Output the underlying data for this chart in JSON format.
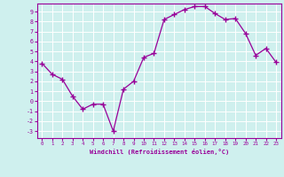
{
  "x": [
    0,
    1,
    2,
    3,
    4,
    5,
    6,
    7,
    8,
    9,
    10,
    11,
    12,
    13,
    14,
    15,
    16,
    17,
    18,
    19,
    20,
    21,
    22,
    23
  ],
  "y": [
    3.8,
    2.7,
    2.2,
    0.5,
    -0.8,
    -0.3,
    -0.3,
    -3.0,
    1.2,
    2.0,
    4.4,
    4.8,
    8.2,
    8.7,
    9.2,
    9.5,
    9.5,
    8.8,
    8.2,
    8.3,
    6.8,
    4.6,
    5.3,
    3.9
  ],
  "line_color": "#990099",
  "marker": "+",
  "marker_size": 4,
  "bg_color": "#cff0ee",
  "grid_color": "#ffffff",
  "xlabel": "Windchill (Refroidissement éolien,°C)",
  "ylabel_ticks": [
    "-3",
    "-2",
    "-1",
    "0",
    "1",
    "2",
    "3",
    "4",
    "5",
    "6",
    "7",
    "8",
    "9"
  ],
  "yticks": [
    -3,
    -2,
    -1,
    0,
    1,
    2,
    3,
    4,
    5,
    6,
    7,
    8,
    9
  ],
  "ylim": [
    -3.7,
    9.8
  ],
  "xlim": [
    -0.5,
    23.5
  ],
  "xticks": [
    0,
    1,
    2,
    3,
    4,
    5,
    6,
    7,
    8,
    9,
    10,
    11,
    12,
    13,
    14,
    15,
    16,
    17,
    18,
    19,
    20,
    21,
    22,
    23
  ],
  "tick_color": "#990099",
  "label_color": "#990099",
  "spine_color": "#990099"
}
